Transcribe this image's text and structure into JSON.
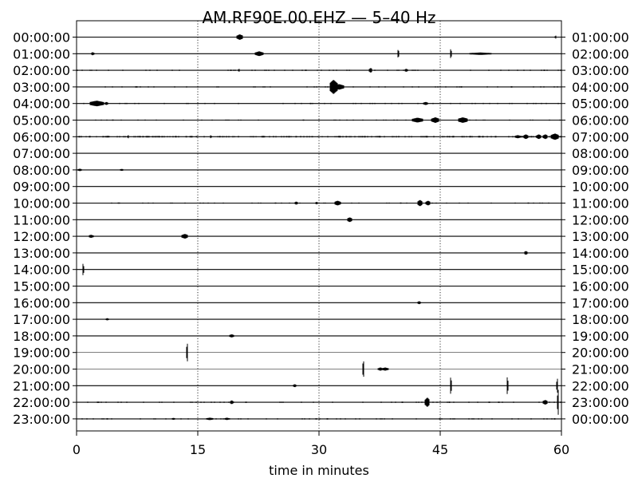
{
  "chart_data": {
    "type": "line",
    "title": "AM.RF90E.00.EHZ — 5–40 Hz",
    "xlabel": "time in minutes",
    "xlim": [
      0,
      60
    ],
    "xticks": [
      "0",
      "15",
      "30",
      "45",
      "60"
    ],
    "vertical_grid_minutes": [
      15,
      30,
      45
    ],
    "grid_style": "dotted",
    "trace_color": "#000000",
    "left_labels": [
      "00:00:00",
      "01:00:00",
      "02:00:00",
      "03:00:00",
      "04:00:00",
      "05:00:00",
      "06:00:00",
      "07:00:00",
      "08:00:00",
      "09:00:00",
      "10:00:00",
      "11:00:00",
      "12:00:00",
      "13:00:00",
      "14:00:00",
      "15:00:00",
      "16:00:00",
      "17:00:00",
      "18:00:00",
      "19:00:00",
      "20:00:00",
      "21:00:00",
      "22:00:00",
      "23:00:00"
    ],
    "right_labels": [
      "01:00:00",
      "02:00:00",
      "03:00:00",
      "04:00:00",
      "05:00:00",
      "06:00:00",
      "07:00:00",
      "08:00:00",
      "09:00:00",
      "10:00:00",
      "11:00:00",
      "12:00:00",
      "13:00:00",
      "14:00:00",
      "15:00:00",
      "16:00:00",
      "17:00:00",
      "18:00:00",
      "19:00:00",
      "20:00:00",
      "21:00:00",
      "22:00:00",
      "23:00:00",
      "00:00:00"
    ],
    "rows": [
      {
        "noise": 0.4,
        "events": [
          {
            "t": 20.2,
            "amp": 3.5,
            "dur": 0.4
          },
          {
            "t": 59.3,
            "amp": 2.0,
            "dur": 0.1
          }
        ]
      },
      {
        "noise": 0.5,
        "events": [
          {
            "t": 2.0,
            "amp": 2.0,
            "dur": 0.2
          },
          {
            "t": 22.6,
            "amp": 3.0,
            "dur": 0.5
          },
          {
            "t": 39.8,
            "amp": 5.5,
            "dur": 0.1
          },
          {
            "t": 46.3,
            "amp": 6.0,
            "dur": 0.1
          },
          {
            "t": 50.0,
            "amp": 1.5,
            "dur": 1.5
          }
        ]
      },
      {
        "noise": 0.6,
        "events": [
          {
            "t": 20.1,
            "amp": 2.0,
            "dur": 0.1
          },
          {
            "t": 36.4,
            "amp": 3.0,
            "dur": 0.2
          },
          {
            "t": 40.8,
            "amp": 2.0,
            "dur": 0.2
          }
        ]
      },
      {
        "noise": 0.6,
        "events": [
          {
            "t": 31.8,
            "amp": 9.0,
            "dur": 0.5
          },
          {
            "t": 32.5,
            "amp": 3.5,
            "dur": 0.6
          }
        ]
      },
      {
        "noise": 0.6,
        "events": [
          {
            "t": 2.5,
            "amp": 3.5,
            "dur": 0.9
          },
          {
            "t": 3.7,
            "amp": 2.0,
            "dur": 0.2
          },
          {
            "t": 43.2,
            "amp": 2.0,
            "dur": 0.3
          }
        ]
      },
      {
        "noise": 0.6,
        "events": [
          {
            "t": 42.2,
            "amp": 3.0,
            "dur": 0.7
          },
          {
            "t": 44.4,
            "amp": 3.5,
            "dur": 0.5
          },
          {
            "t": 47.8,
            "amp": 3.5,
            "dur": 0.6
          }
        ]
      },
      {
        "noise": 0.7,
        "events": [
          {
            "t": 6.4,
            "amp": 2.0,
            "dur": 0.1
          },
          {
            "t": 16.6,
            "amp": 2.0,
            "dur": 0.1
          },
          {
            "t": 54.6,
            "amp": 2.0,
            "dur": 0.4
          },
          {
            "t": 55.6,
            "amp": 3.0,
            "dur": 0.3
          },
          {
            "t": 57.2,
            "amp": 3.0,
            "dur": 0.3
          },
          {
            "t": 58.0,
            "amp": 3.0,
            "dur": 0.3
          },
          {
            "t": 59.2,
            "amp": 4.0,
            "dur": 0.5
          }
        ]
      },
      {
        "noise": 0.5,
        "events": []
      },
      {
        "noise": 0.5,
        "events": [
          {
            "t": 0.4,
            "amp": 1.5,
            "dur": 0.3
          },
          {
            "t": 5.6,
            "amp": 1.2,
            "dur": 0.3
          }
        ]
      },
      {
        "noise": 0.5,
        "events": []
      },
      {
        "noise": 0.6,
        "events": [
          {
            "t": 27.2,
            "amp": 2.0,
            "dur": 0.2
          },
          {
            "t": 29.7,
            "amp": 1.5,
            "dur": 0.2
          },
          {
            "t": 32.3,
            "amp": 3.0,
            "dur": 0.4
          },
          {
            "t": 42.5,
            "amp": 4.0,
            "dur": 0.3
          },
          {
            "t": 43.5,
            "amp": 3.0,
            "dur": 0.3
          }
        ]
      },
      {
        "noise": 0.5,
        "events": [
          {
            "t": 33.8,
            "amp": 3.0,
            "dur": 0.3
          }
        ]
      },
      {
        "noise": 0.5,
        "events": [
          {
            "t": 1.8,
            "amp": 2.0,
            "dur": 0.3
          },
          {
            "t": 13.4,
            "amp": 3.0,
            "dur": 0.4
          }
        ]
      },
      {
        "noise": 0.4,
        "events": [
          {
            "t": 55.6,
            "amp": 2.5,
            "dur": 0.2
          }
        ]
      },
      {
        "noise": 0.5,
        "events": [
          {
            "t": 0.8,
            "amp": 7.5,
            "dur": 0.1
          }
        ]
      },
      {
        "noise": 0.4,
        "events": []
      },
      {
        "noise": 0.5,
        "events": [
          {
            "t": 42.4,
            "amp": 2.0,
            "dur": 0.2
          }
        ]
      },
      {
        "noise": 0.5,
        "events": [
          {
            "t": 3.8,
            "amp": 1.5,
            "dur": 0.2
          }
        ]
      },
      {
        "noise": 0.5,
        "events": [
          {
            "t": 19.2,
            "amp": 2.0,
            "dur": 0.3
          }
        ]
      },
      {
        "noise": 0.3,
        "events": [
          {
            "t": 13.7,
            "amp": 12.0,
            "dur": 0.1
          }
        ]
      },
      {
        "noise": 0.3,
        "events": [
          {
            "t": 35.5,
            "amp": 11.0,
            "dur": 0.1
          },
          {
            "t": 37.6,
            "amp": 2.0,
            "dur": 0.3
          },
          {
            "t": 38.2,
            "amp": 2.0,
            "dur": 0.4
          }
        ]
      },
      {
        "noise": 0.4,
        "events": [
          {
            "t": 27.0,
            "amp": 2.0,
            "dur": 0.2
          },
          {
            "t": 46.3,
            "amp": 11.0,
            "dur": 0.1
          },
          {
            "t": 53.3,
            "amp": 11.0,
            "dur": 0.1
          },
          {
            "t": 59.5,
            "amp": 9.0,
            "dur": 0.1
          }
        ]
      },
      {
        "noise": 0.6,
        "events": [
          {
            "t": 19.2,
            "amp": 2.5,
            "dur": 0.2
          },
          {
            "t": 43.4,
            "amp": 6.0,
            "dur": 0.3
          },
          {
            "t": 58.0,
            "amp": 3.0,
            "dur": 0.3
          },
          {
            "t": 59.6,
            "amp": 16.0,
            "dur": 0.1
          }
        ]
      },
      {
        "noise": 0.6,
        "events": [
          {
            "t": 12.0,
            "amp": 1.2,
            "dur": 0.3
          },
          {
            "t": 16.5,
            "amp": 1.5,
            "dur": 0.5
          },
          {
            "t": 18.6,
            "amp": 1.5,
            "dur": 0.3
          }
        ]
      }
    ]
  }
}
